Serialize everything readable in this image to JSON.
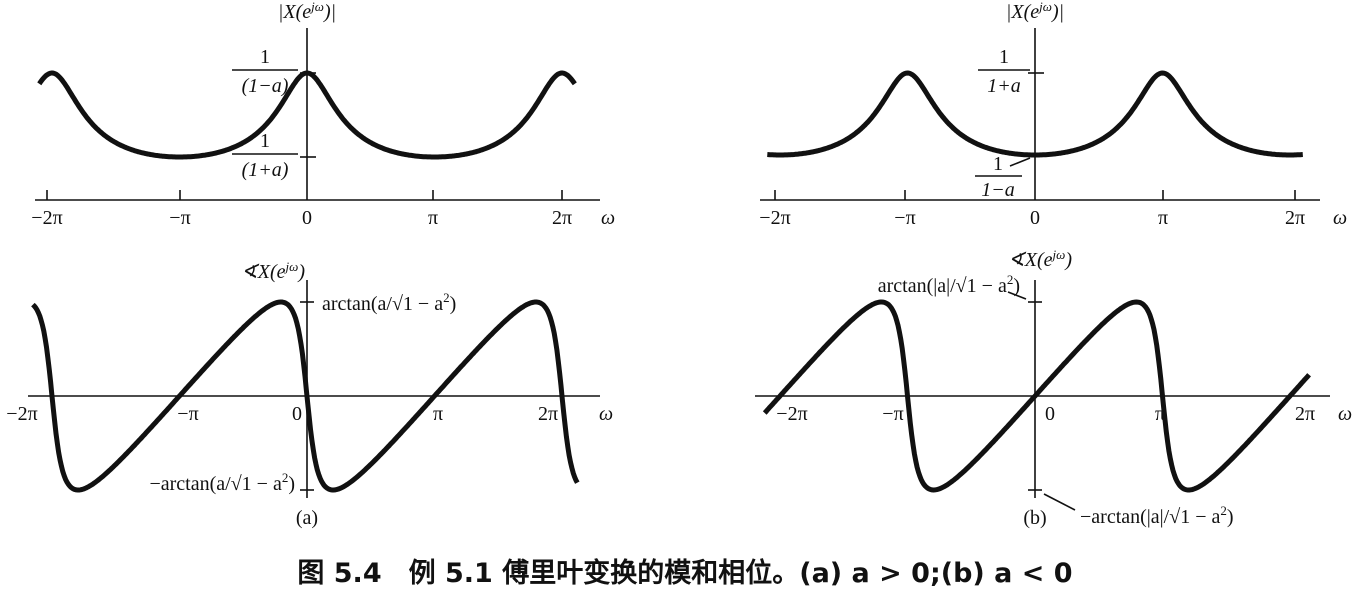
{
  "panels": [
    {
      "label": "(a)",
      "magnitude": {
        "ylabel": {
          "base": "|X(e",
          "sup": "jω",
          "close": ")|"
        },
        "levels": [
          {
            "num": "1",
            "den": "(1−a)"
          },
          {
            "num": "1",
            "den": "(1+a)"
          }
        ],
        "xticks": [
          "−2π",
          "−π",
          "0",
          "π",
          "2π"
        ],
        "xlabel": "ω"
      },
      "phase": {
        "ylabel": {
          "base": "∢X(e",
          "sup": "jω",
          "close": ")"
        },
        "top": {
          "text": "arctan(a/√1 − a",
          "sup": "2",
          "close": ")"
        },
        "bottom": {
          "text": "−arctan(a/√1 − a",
          "sup": "2",
          "close": ")"
        },
        "xticks": [
          "−2π",
          "−π",
          "0",
          "π",
          "2π"
        ],
        "xlabel": "ω"
      }
    },
    {
      "label": "(b)",
      "magnitude": {
        "ylabel": {
          "base": "|X(e",
          "sup": "jω",
          "close": ")|"
        },
        "levels": [
          {
            "num": "1",
            "den": "1+a"
          },
          {
            "num": "1",
            "den": "1−a"
          }
        ],
        "xticks": [
          "−2π",
          "−π",
          "0",
          "π",
          "2π"
        ],
        "xlabel": "ω"
      },
      "phase": {
        "ylabel": {
          "base": "∢X(e",
          "sup": "jω",
          "close": ")"
        },
        "top": {
          "text": "arctan(|a|/√1 − a",
          "sup": "2",
          "close": ")"
        },
        "bottom": {
          "text": "−arctan(|a|/√1 − a",
          "sup": "2",
          "close": ")"
        },
        "xticks": [
          "−2π",
          "−π",
          "0",
          "π",
          "2π"
        ],
        "xlabel": "ω"
      }
    }
  ],
  "caption": "图 5.4　例 5.1 傅里叶变换的模和相位。(a) a > 0;(b) a < 0"
}
